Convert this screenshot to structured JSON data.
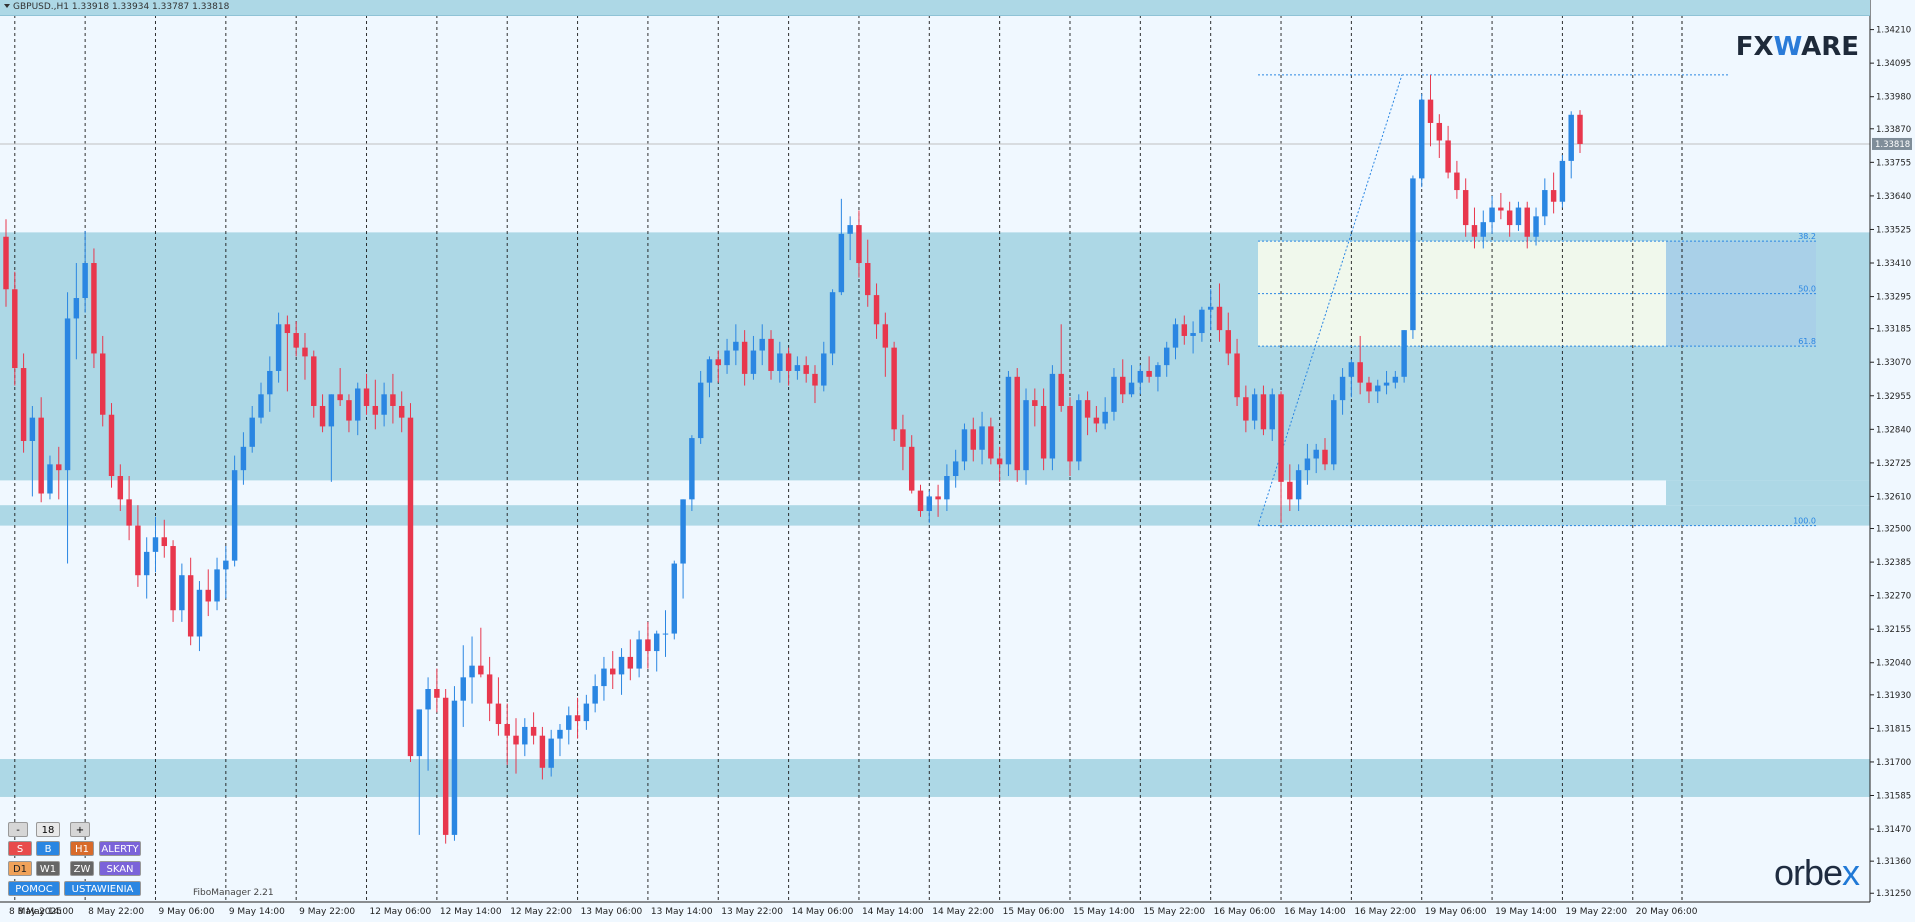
{
  "header": {
    "symbol_info": "GBPUSD.,H1  1.33918 1.33934 1.33787 1.33818"
  },
  "logo": {
    "prefix": "FX",
    "middle": "W",
    "suffix": "ARE"
  },
  "brand": {
    "prefix": "orbe",
    "suffix": "x"
  },
  "indicator": {
    "label": "FiboManager 2.21"
  },
  "panel": {
    "minus": "-",
    "value": "18",
    "plus": "+",
    "s": "S",
    "b": "B",
    "h1": "H1",
    "alerty": "ALERTY",
    "d1": "D1",
    "w1": "W1",
    "zw": "ZW",
    "skan": "SKAN",
    "pomoc": "POMOC",
    "ustawienia": "USTAWIENIA"
  },
  "colors": {
    "bull": "#2a86e2",
    "bear": "#e8374d",
    "zone": "#add8e6",
    "fibo_box": "#f0f8ec",
    "grid": "#1a1a1a",
    "bg": "#f0f8ff"
  },
  "chart_data": {
    "type": "candlestick",
    "symbol": "GBPUSD.",
    "timeframe": "H1",
    "ohlc_current": {
      "open": 1.33918,
      "high": 1.33934,
      "low": 1.33787,
      "close": 1.33818
    },
    "current_price_label": "1.33818",
    "ylim": [
      1.3122,
      1.3426
    ],
    "y_ticks": [
      "1.34210",
      "1.34095",
      "1.33980",
      "1.33870",
      "1.33755",
      "1.33640",
      "1.33525",
      "1.33410",
      "1.33295",
      "1.33185",
      "1.33070",
      "1.32955",
      "1.32840",
      "1.32725",
      "1.32610",
      "1.32500",
      "1.32385",
      "1.32270",
      "1.32155",
      "1.32040",
      "1.31930",
      "1.31815",
      "1.31700",
      "1.31585",
      "1.31470",
      "1.31360",
      "1.31250"
    ],
    "x_ticks": [
      "8 May 2025",
      "8 May 14:00",
      "8 May 22:00",
      "9 May 06:00",
      "9 May 14:00",
      "9 May 22:00",
      "12 May 06:00",
      "12 May 14:00",
      "12 May 22:00",
      "13 May 06:00",
      "13 May 14:00",
      "13 May 22:00",
      "14 May 06:00",
      "14 May 14:00",
      "14 May 22:00",
      "15 May 06:00",
      "15 May 14:00",
      "15 May 22:00",
      "16 May 06:00",
      "16 May 14:00",
      "16 May 22:00",
      "19 May 06:00",
      "19 May 14:00",
      "19 May 22:00",
      "20 May 06:00"
    ],
    "zones": [
      {
        "from": 1.32665,
        "to": 1.33515
      },
      {
        "from": 1.3251,
        "to": 1.3258
      },
      {
        "from": 1.3158,
        "to": 1.3171
      }
    ],
    "fibo_levels": [
      {
        "label": "38.2",
        "price": 1.33485
      },
      {
        "label": "50.0",
        "price": 1.33305
      },
      {
        "label": "61.8",
        "price": 1.33125
      },
      {
        "label": "100.0",
        "price": 1.3251
      }
    ],
    "fibo_swing": {
      "high": 1.34055,
      "low": 1.3251
    },
    "candles": [
      [
        1.335,
        1.3356,
        1.3326,
        1.3332
      ],
      [
        1.3332,
        1.3338,
        1.3299,
        1.3305
      ],
      [
        1.3305,
        1.331,
        1.3276,
        1.328
      ],
      [
        1.328,
        1.3292,
        1.3261,
        1.3288
      ],
      [
        1.3288,
        1.3295,
        1.3259,
        1.3262
      ],
      [
        1.3262,
        1.3275,
        1.326,
        1.3272
      ],
      [
        1.3272,
        1.3278,
        1.326,
        1.327
      ],
      [
        1.327,
        1.3331,
        1.3238,
        1.3322
      ],
      [
        1.3322,
        1.3341,
        1.3308,
        1.3329
      ],
      [
        1.3329,
        1.3352,
        1.3324,
        1.3341
      ],
      [
        1.3341,
        1.3346,
        1.3305,
        1.331
      ],
      [
        1.331,
        1.3316,
        1.3285,
        1.3289
      ],
      [
        1.3289,
        1.3293,
        1.3264,
        1.3268
      ],
      [
        1.3268,
        1.3272,
        1.3256,
        1.326
      ],
      [
        1.326,
        1.3268,
        1.3246,
        1.3251
      ],
      [
        1.3251,
        1.3258,
        1.323,
        1.3234
      ],
      [
        1.3234,
        1.3247,
        1.3226,
        1.3242
      ],
      [
        1.3242,
        1.3254,
        1.3235,
        1.3247
      ],
      [
        1.3247,
        1.3253,
        1.324,
        1.3244
      ],
      [
        1.3244,
        1.3246,
        1.3218,
        1.3222
      ],
      [
        1.3222,
        1.3238,
        1.3218,
        1.3234
      ],
      [
        1.3234,
        1.324,
        1.321,
        1.3213
      ],
      [
        1.3213,
        1.3232,
        1.3208,
        1.3229
      ],
      [
        1.3229,
        1.3236,
        1.322,
        1.3225
      ],
      [
        1.3225,
        1.324,
        1.3222,
        1.3236
      ],
      [
        1.3236,
        1.3244,
        1.3226,
        1.3239
      ],
      [
        1.3239,
        1.3275,
        1.3237,
        1.327
      ],
      [
        1.327,
        1.3283,
        1.3265,
        1.3278
      ],
      [
        1.3278,
        1.3292,
        1.3276,
        1.3288
      ],
      [
        1.3288,
        1.33,
        1.3286,
        1.3296
      ],
      [
        1.3296,
        1.3309,
        1.329,
        1.3304
      ],
      [
        1.3304,
        1.3324,
        1.33,
        1.332
      ],
      [
        1.332,
        1.3323,
        1.3297,
        1.3317
      ],
      [
        1.3317,
        1.3321,
        1.3309,
        1.3312
      ],
      [
        1.3312,
        1.3317,
        1.3301,
        1.3309
      ],
      [
        1.3309,
        1.3311,
        1.3288,
        1.3292
      ],
      [
        1.3292,
        1.3296,
        1.3283,
        1.3285
      ],
      [
        1.3285,
        1.3296,
        1.3266,
        1.3296
      ],
      [
        1.3296,
        1.3305,
        1.3292,
        1.3294
      ],
      [
        1.3294,
        1.3296,
        1.3283,
        1.3287
      ],
      [
        1.3287,
        1.33,
        1.3282,
        1.3298
      ],
      [
        1.3298,
        1.3303,
        1.3289,
        1.3292
      ],
      [
        1.3292,
        1.3301,
        1.3284,
        1.3289
      ],
      [
        1.3289,
        1.33,
        1.3285,
        1.3296
      ],
      [
        1.3296,
        1.3303,
        1.3286,
        1.3292
      ],
      [
        1.3292,
        1.3297,
        1.3283,
        1.3288
      ],
      [
        1.3288,
        1.3293,
        1.317,
        1.3172
      ],
      [
        1.3172,
        1.3188,
        1.3145,
        1.3188
      ],
      [
        1.3188,
        1.3199,
        1.3167,
        1.3195
      ],
      [
        1.3195,
        1.3202,
        1.3187,
        1.3192
      ],
      [
        1.3192,
        1.3195,
        1.3142,
        1.3145
      ],
      [
        1.3145,
        1.3196,
        1.3143,
        1.3191
      ],
      [
        1.3191,
        1.321,
        1.3182,
        1.3199
      ],
      [
        1.3199,
        1.3213,
        1.319,
        1.3203
      ],
      [
        1.3203,
        1.3216,
        1.3199,
        1.32
      ],
      [
        1.32,
        1.3206,
        1.3184,
        1.319
      ],
      [
        1.319,
        1.3199,
        1.3179,
        1.3183
      ],
      [
        1.3183,
        1.319,
        1.3169,
        1.3179
      ],
      [
        1.3179,
        1.3185,
        1.3166,
        1.3176
      ],
      [
        1.3176,
        1.3185,
        1.3172,
        1.3182
      ],
      [
        1.3182,
        1.3187,
        1.3176,
        1.3179
      ],
      [
        1.3179,
        1.3182,
        1.3164,
        1.3168
      ],
      [
        1.3168,
        1.3181,
        1.3165,
        1.3178
      ],
      [
        1.3178,
        1.3183,
        1.3172,
        1.3181
      ],
      [
        1.3181,
        1.3189,
        1.3176,
        1.3186
      ],
      [
        1.3186,
        1.3192,
        1.3178,
        1.3184
      ],
      [
        1.3184,
        1.3193,
        1.3181,
        1.319
      ],
      [
        1.319,
        1.32,
        1.3187,
        1.3196
      ],
      [
        1.3196,
        1.3206,
        1.3191,
        1.3202
      ],
      [
        1.3202,
        1.3208,
        1.3195,
        1.32
      ],
      [
        1.32,
        1.3209,
        1.3193,
        1.3206
      ],
      [
        1.3206,
        1.3212,
        1.3198,
        1.3202
      ],
      [
        1.3202,
        1.3215,
        1.3199,
        1.3212
      ],
      [
        1.3212,
        1.3218,
        1.3202,
        1.3208
      ],
      [
        1.3208,
        1.3215,
        1.3201,
        1.3214
      ],
      [
        1.3214,
        1.3222,
        1.3206,
        1.3214
      ],
      [
        1.3214,
        1.3239,
        1.3212,
        1.3238
      ],
      [
        1.3238,
        1.326,
        1.3226,
        1.326
      ],
      [
        1.326,
        1.3282,
        1.3256,
        1.3281
      ],
      [
        1.3281,
        1.3304,
        1.3279,
        1.33
      ],
      [
        1.33,
        1.3309,
        1.3295,
        1.3308
      ],
      [
        1.3308,
        1.3311,
        1.33,
        1.3306
      ],
      [
        1.3306,
        1.3315,
        1.3303,
        1.3311
      ],
      [
        1.3311,
        1.332,
        1.3306,
        1.3314
      ],
      [
        1.3314,
        1.3318,
        1.3299,
        1.3303
      ],
      [
        1.3303,
        1.3316,
        1.3301,
        1.3311
      ],
      [
        1.3311,
        1.332,
        1.3306,
        1.3315
      ],
      [
        1.3315,
        1.3318,
        1.3301,
        1.3304
      ],
      [
        1.3304,
        1.3314,
        1.33,
        1.331
      ],
      [
        1.331,
        1.3312,
        1.3299,
        1.3304
      ],
      [
        1.3304,
        1.3309,
        1.3301,
        1.3306
      ],
      [
        1.3306,
        1.3309,
        1.33,
        1.3303
      ],
      [
        1.3303,
        1.3306,
        1.3293,
        1.3299
      ],
      [
        1.3299,
        1.3314,
        1.3297,
        1.331
      ],
      [
        1.331,
        1.3332,
        1.3306,
        1.3331
      ],
      [
        1.3331,
        1.3363,
        1.333,
        1.3351
      ],
      [
        1.3351,
        1.3357,
        1.3342,
        1.3354
      ],
      [
        1.3354,
        1.3359,
        1.3336,
        1.3341
      ],
      [
        1.3341,
        1.3349,
        1.3326,
        1.333
      ],
      [
        1.333,
        1.3334,
        1.3315,
        1.332
      ],
      [
        1.332,
        1.3324,
        1.3302,
        1.3312
      ],
      [
        1.3312,
        1.3314,
        1.328,
        1.3284
      ],
      [
        1.3284,
        1.3289,
        1.327,
        1.3278
      ],
      [
        1.3278,
        1.3282,
        1.3262,
        1.3263
      ],
      [
        1.3263,
        1.3265,
        1.3254,
        1.3256
      ],
      [
        1.3256,
        1.3263,
        1.3252,
        1.3261
      ],
      [
        1.3261,
        1.3265,
        1.3254,
        1.326
      ],
      [
        1.326,
        1.3272,
        1.3256,
        1.3268
      ],
      [
        1.3268,
        1.3277,
        1.3264,
        1.3273
      ],
      [
        1.3273,
        1.3286,
        1.327,
        1.3284
      ],
      [
        1.3284,
        1.3288,
        1.3273,
        1.3277
      ],
      [
        1.3277,
        1.329,
        1.3272,
        1.3285
      ],
      [
        1.3285,
        1.3288,
        1.3272,
        1.3274
      ],
      [
        1.3274,
        1.3278,
        1.3266,
        1.3272
      ],
      [
        1.3272,
        1.3304,
        1.3268,
        1.3302
      ],
      [
        1.3302,
        1.3305,
        1.3266,
        1.327
      ],
      [
        1.327,
        1.3298,
        1.3265,
        1.3294
      ],
      [
        1.3294,
        1.3298,
        1.3285,
        1.3292
      ],
      [
        1.3292,
        1.3298,
        1.327,
        1.3274
      ],
      [
        1.3274,
        1.3306,
        1.327,
        1.3303
      ],
      [
        1.3303,
        1.332,
        1.329,
        1.3292
      ],
      [
        1.3292,
        1.3295,
        1.3268,
        1.3273
      ],
      [
        1.3273,
        1.3296,
        1.327,
        1.3294
      ],
      [
        1.3294,
        1.3297,
        1.3282,
        1.3288
      ],
      [
        1.3288,
        1.3292,
        1.3283,
        1.3286
      ],
      [
        1.3286,
        1.3295,
        1.3284,
        1.329
      ],
      [
        1.329,
        1.3305,
        1.3287,
        1.3302
      ],
      [
        1.3302,
        1.3308,
        1.3293,
        1.3296
      ],
      [
        1.3296,
        1.3306,
        1.3295,
        1.33
      ],
      [
        1.33,
        1.3306,
        1.3296,
        1.3304
      ],
      [
        1.3304,
        1.3309,
        1.33,
        1.3302
      ],
      [
        1.3302,
        1.3307,
        1.3297,
        1.3306
      ],
      [
        1.3306,
        1.3314,
        1.3302,
        1.3312
      ],
      [
        1.3312,
        1.3322,
        1.3308,
        1.332
      ],
      [
        1.332,
        1.3323,
        1.3313,
        1.3316
      ],
      [
        1.3316,
        1.3321,
        1.331,
        1.3317
      ],
      [
        1.3317,
        1.3326,
        1.3314,
        1.3325
      ],
      [
        1.3325,
        1.3332,
        1.3318,
        1.3326
      ],
      [
        1.3326,
        1.3334,
        1.3314,
        1.3318
      ],
      [
        1.3318,
        1.3324,
        1.3306,
        1.331
      ],
      [
        1.331,
        1.3315,
        1.3292,
        1.3295
      ],
      [
        1.3295,
        1.3299,
        1.3283,
        1.3287
      ],
      [
        1.3287,
        1.3298,
        1.3284,
        1.3296
      ],
      [
        1.3296,
        1.3299,
        1.3282,
        1.3284
      ],
      [
        1.3284,
        1.3298,
        1.328,
        1.3296
      ],
      [
        1.3296,
        1.3297,
        1.3252,
        1.3266
      ],
      [
        1.3266,
        1.3272,
        1.3256,
        1.326
      ],
      [
        1.326,
        1.3272,
        1.3256,
        1.327
      ],
      [
        1.327,
        1.3279,
        1.3265,
        1.3274
      ],
      [
        1.3274,
        1.3279,
        1.3269,
        1.3277
      ],
      [
        1.3277,
        1.3281,
        1.327,
        1.3272
      ],
      [
        1.3272,
        1.3296,
        1.327,
        1.3294
      ],
      [
        1.3294,
        1.3305,
        1.3289,
        1.3302
      ],
      [
        1.3302,
        1.3308,
        1.3295,
        1.3307
      ],
      [
        1.3307,
        1.3316,
        1.3296,
        1.33
      ],
      [
        1.33,
        1.3302,
        1.3293,
        1.3297
      ],
      [
        1.3297,
        1.3301,
        1.3293,
        1.3299
      ],
      [
        1.3299,
        1.3304,
        1.3296,
        1.33
      ],
      [
        1.33,
        1.3304,
        1.3298,
        1.3302
      ],
      [
        1.3302,
        1.3318,
        1.33,
        1.3318
      ],
      [
        1.3318,
        1.3371,
        1.3315,
        1.337
      ],
      [
        1.337,
        1.3399,
        1.3367,
        1.3397
      ],
      [
        1.3397,
        1.34055,
        1.3381,
        1.3389
      ],
      [
        1.3389,
        1.3392,
        1.3377,
        1.3383
      ],
      [
        1.3383,
        1.3388,
        1.337,
        1.3372
      ],
      [
        1.3372,
        1.3376,
        1.3363,
        1.3366
      ],
      [
        1.3366,
        1.337,
        1.335,
        1.3354
      ],
      [
        1.3354,
        1.336,
        1.3346,
        1.335
      ],
      [
        1.335,
        1.3359,
        1.3346,
        1.3355
      ],
      [
        1.3355,
        1.3364,
        1.3351,
        1.336
      ],
      [
        1.336,
        1.3365,
        1.3356,
        1.3359
      ],
      [
        1.3359,
        1.3362,
        1.335,
        1.3354
      ],
      [
        1.3354,
        1.3362,
        1.3352,
        1.336
      ],
      [
        1.336,
        1.3362,
        1.3346,
        1.335
      ],
      [
        1.335,
        1.336,
        1.3347,
        1.3357
      ],
      [
        1.3357,
        1.337,
        1.3354,
        1.3366
      ],
      [
        1.3366,
        1.3372,
        1.3358,
        1.3362
      ],
      [
        1.3362,
        1.3378,
        1.336,
        1.3376
      ],
      [
        1.3376,
        1.3393,
        1.337,
        1.33918
      ],
      [
        1.33918,
        1.33934,
        1.33787,
        1.33818
      ]
    ]
  }
}
